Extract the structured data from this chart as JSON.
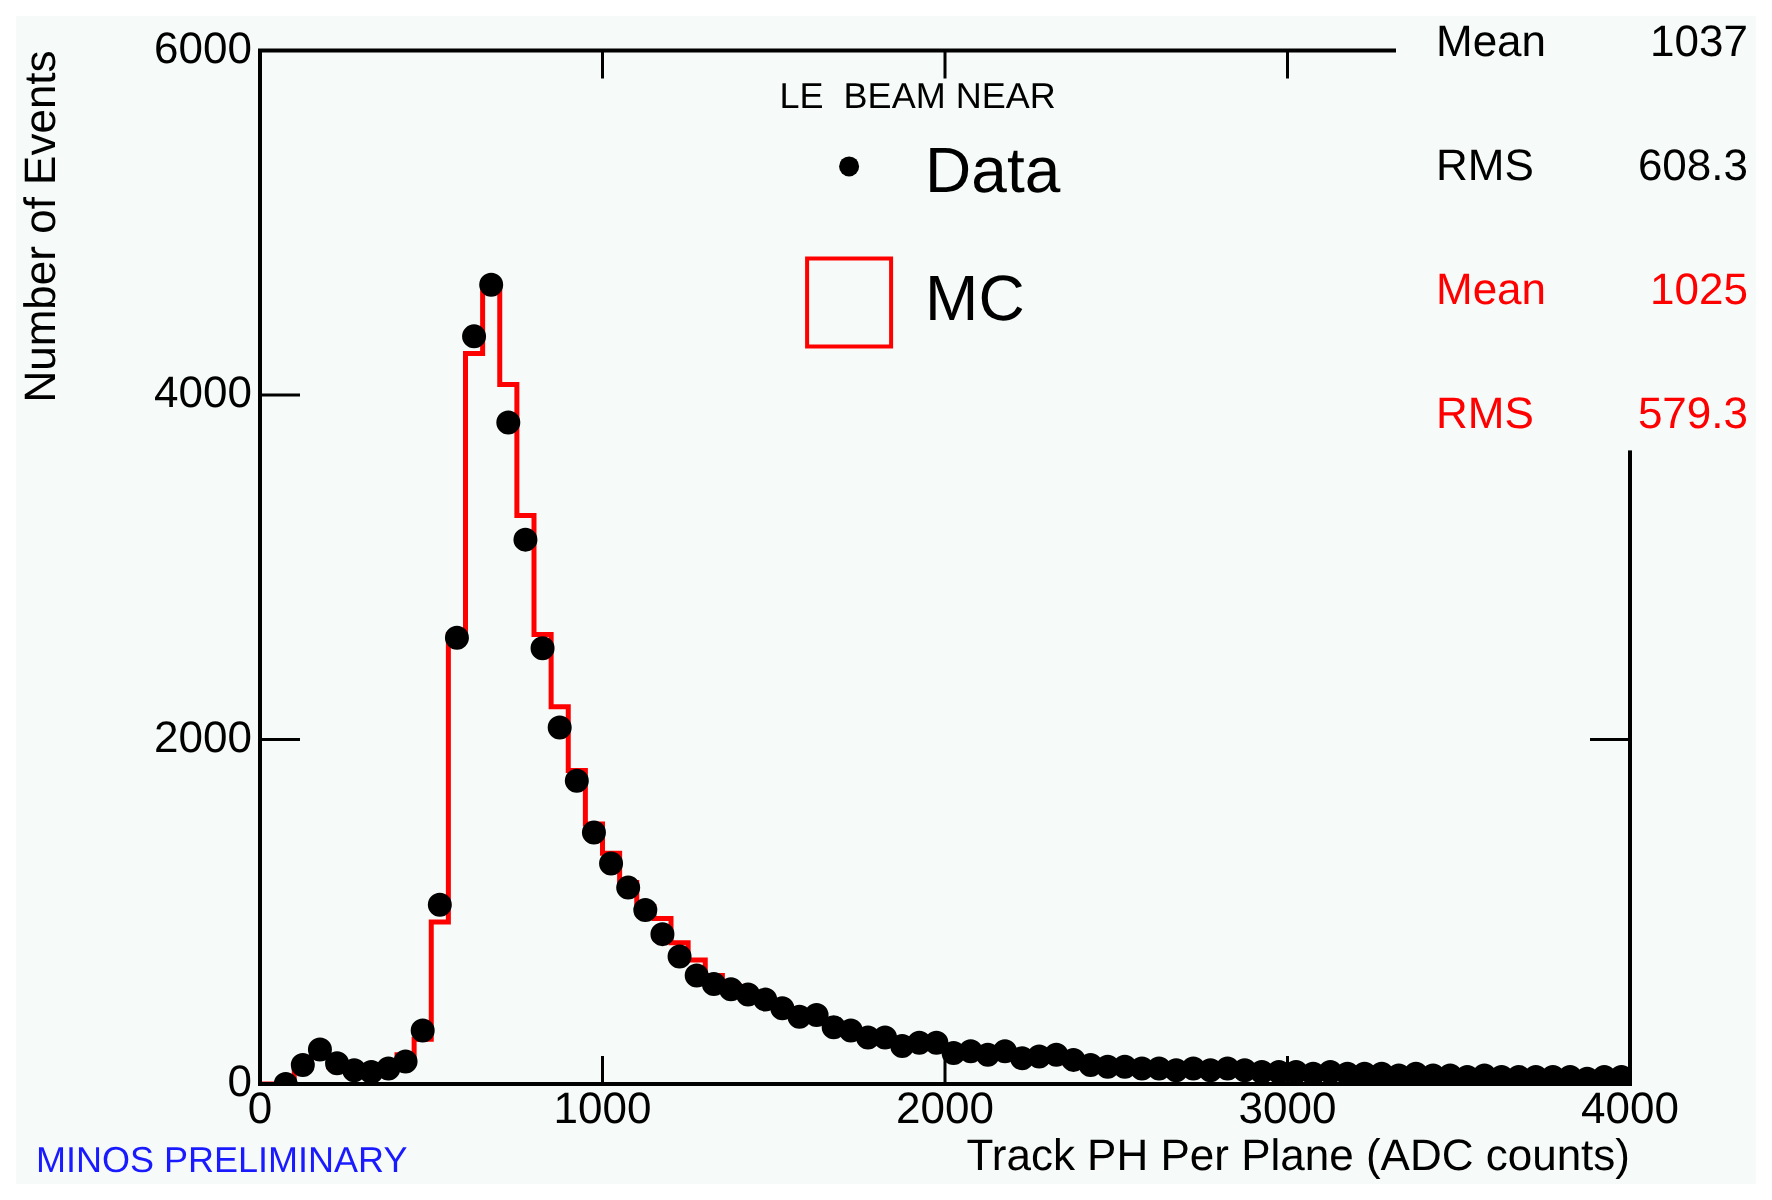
{
  "chart_data": {
    "type": "histogram",
    "title": "LE  BEAM NEAR",
    "xlabel": "Track PH Per Plane (ADC counts)",
    "ylabel": "Number of Events",
    "bins": [
      0,
      50,
      100,
      150,
      200,
      250,
      300,
      350,
      400,
      450,
      500,
      550,
      600,
      650,
      700,
      750,
      800,
      850,
      900,
      950,
      1000,
      1050,
      1100,
      1150,
      1200,
      1250,
      1300,
      1350,
      1400,
      1450,
      1500,
      1550,
      1600,
      1650,
      1700,
      1750,
      1800,
      1850,
      1900,
      1950,
      2000,
      2050,
      2100,
      2150,
      2200,
      2250,
      2300,
      2350,
      2400,
      2450,
      2500,
      2550,
      2600,
      2650,
      2700,
      2750,
      2800,
      2850,
      2900,
      2950,
      3000,
      3050,
      3100,
      3150,
      3200,
      3250,
      3300,
      3350,
      3400,
      3450,
      3500,
      3550,
      3600,
      3650,
      3700,
      3750,
      3800,
      3850,
      3900,
      3950,
      4000
    ],
    "series": [
      {
        "name": "Data",
        "type": "scatter",
        "marker": "circle",
        "color": "#000000",
        "x": [
          75,
          125,
          175,
          225,
          275,
          325,
          375,
          425,
          475,
          525,
          575,
          625,
          675,
          725,
          775,
          825,
          875,
          925,
          975,
          1025,
          1075,
          1125,
          1175,
          1225,
          1275,
          1325,
          1375,
          1425,
          1475,
          1525,
          1575,
          1625,
          1675,
          1725,
          1775,
          1825,
          1875,
          1925,
          1975,
          2025,
          2075,
          2125,
          2175,
          2225,
          2275,
          2325,
          2375,
          2425,
          2475,
          2525,
          2575,
          2625,
          2675,
          2725,
          2775,
          2825,
          2875,
          2925,
          2975,
          3025,
          3075,
          3125,
          3175,
          3225,
          3275,
          3325,
          3375,
          3425,
          3475,
          3525,
          3575,
          3625,
          3675,
          3725,
          3775,
          3825,
          3875,
          3925,
          3975
        ],
        "values": [
          0,
          110,
          200,
          120,
          80,
          70,
          90,
          130,
          310,
          1040,
          2590,
          4340,
          4640,
          3840,
          3160,
          2530,
          2070,
          1760,
          1460,
          1280,
          1140,
          1010,
          870,
          740,
          630,
          580,
          550,
          520,
          490,
          440,
          390,
          400,
          330,
          310,
          270,
          270,
          220,
          240,
          240,
          180,
          190,
          170,
          190,
          150,
          160,
          170,
          140,
          110,
          100,
          100,
          90,
          90,
          80,
          90,
          80,
          90,
          80,
          70,
          70,
          70,
          60,
          70,
          60,
          60,
          60,
          50,
          60,
          50,
          50,
          40,
          50,
          40,
          40,
          40,
          40,
          40,
          30,
          40,
          40
        ]
      },
      {
        "name": "MC",
        "color": "#ff0000",
        "values": [
          0,
          0,
          120,
          160,
          100,
          70,
          70,
          100,
          170,
          260,
          940,
          2610,
          4240,
          4640,
          4060,
          3300,
          2610,
          2190,
          1820,
          1510,
          1340,
          1170,
          1030,
          960,
          820,
          720,
          630,
          570,
          530,
          490,
          450,
          410,
          380,
          340,
          310,
          290,
          260,
          240,
          230,
          210,
          200,
          190,
          170,
          160,
          150,
          140,
          130,
          120,
          110,
          100,
          100,
          90,
          90,
          90,
          80,
          80,
          80,
          80,
          70,
          70,
          70,
          70,
          60,
          60,
          60,
          60,
          60,
          50,
          50,
          50,
          50,
          50,
          40,
          40,
          40,
          40,
          40,
          40,
          40,
          40
        ]
      }
    ],
    "xlim": [
      0,
      4000
    ],
    "xticks": [
      0,
      1000,
      2000,
      3000,
      4000
    ],
    "ylim": [
      0,
      6000
    ],
    "yticks": [
      0,
      2000,
      4000,
      6000
    ],
    "legend": "top",
    "annotations": [
      "Mean    1037",
      "RMS   608.3",
      "Mean    1025",
      "RMS   579.3",
      "MINOS PRELIMINARY"
    ]
  }
}
